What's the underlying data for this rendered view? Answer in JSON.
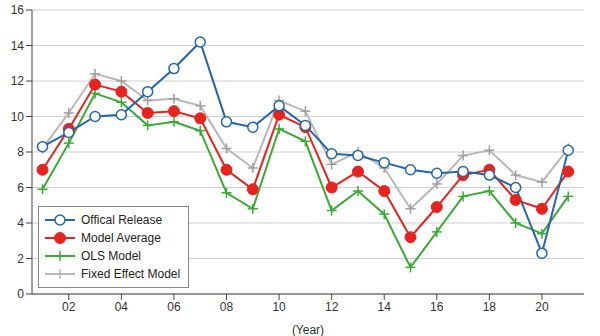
{
  "chart_data": {
    "type": "line",
    "x_label": "(Year)",
    "x": [
      2001,
      2002,
      2003,
      2004,
      2005,
      2006,
      2007,
      2008,
      2009,
      2010,
      2011,
      2012,
      2013,
      2014,
      2015,
      2016,
      2017,
      2018,
      2019,
      2020,
      2021
    ],
    "xlim": [
      2000.6,
      2021.6
    ],
    "xticks": [
      {
        "value": 2002,
        "label": "02"
      },
      {
        "value": 2004,
        "label": "04"
      },
      {
        "value": 2006,
        "label": "06"
      },
      {
        "value": 2008,
        "label": "08"
      },
      {
        "value": 2010,
        "label": "10"
      },
      {
        "value": 2012,
        "label": "12"
      },
      {
        "value": 2014,
        "label": "14"
      },
      {
        "value": 2016,
        "label": "16"
      },
      {
        "value": 2018,
        "label": "18"
      },
      {
        "value": 2020,
        "label": "20"
      }
    ],
    "ylim": [
      0,
      16
    ],
    "yticks": [
      0,
      2,
      4,
      6,
      8,
      10,
      12,
      14,
      16
    ],
    "grid": true,
    "legend": "bottom-left",
    "series": [
      {
        "name": "Offical Release",
        "color": "#2566a8",
        "marker": "circle_open",
        "line_style": "solid",
        "values": [
          8.3,
          9.1,
          10.0,
          10.1,
          11.4,
          12.7,
          14.2,
          9.7,
          9.4,
          10.6,
          9.5,
          7.9,
          7.8,
          7.4,
          7.0,
          6.8,
          6.9,
          6.7,
          6.0,
          2.3,
          8.1
        ]
      },
      {
        "name": "Model Average",
        "color": "#e8231e",
        "marker": "circle",
        "line_style": "solid",
        "values": [
          7.0,
          9.3,
          11.8,
          11.4,
          10.2,
          10.3,
          9.9,
          7.0,
          5.9,
          10.1,
          9.4,
          6.0,
          6.9,
          5.8,
          3.2,
          4.9,
          6.7,
          7.0,
          5.3,
          4.8,
          6.9
        ]
      },
      {
        "name": "OLS Model",
        "color": "#3aaa35",
        "marker": "plus",
        "line_style": "solid",
        "values": [
          5.9,
          8.5,
          11.3,
          10.8,
          9.5,
          9.7,
          9.2,
          5.7,
          4.8,
          9.3,
          8.6,
          4.7,
          5.8,
          4.5,
          1.5,
          3.5,
          5.5,
          5.8,
          4.0,
          3.4,
          5.5
        ]
      },
      {
        "name": "Fixed Effect Model",
        "color": "#b8b8b8",
        "marker": "plus",
        "line_style": "solid",
        "values": [
          8.2,
          10.2,
          12.4,
          12.0,
          10.9,
          11.0,
          10.6,
          8.2,
          7.1,
          10.9,
          10.3,
          7.3,
          8.0,
          7.1,
          4.8,
          6.2,
          7.8,
          8.1,
          6.7,
          6.3,
          8.2
        ]
      }
    ]
  }
}
